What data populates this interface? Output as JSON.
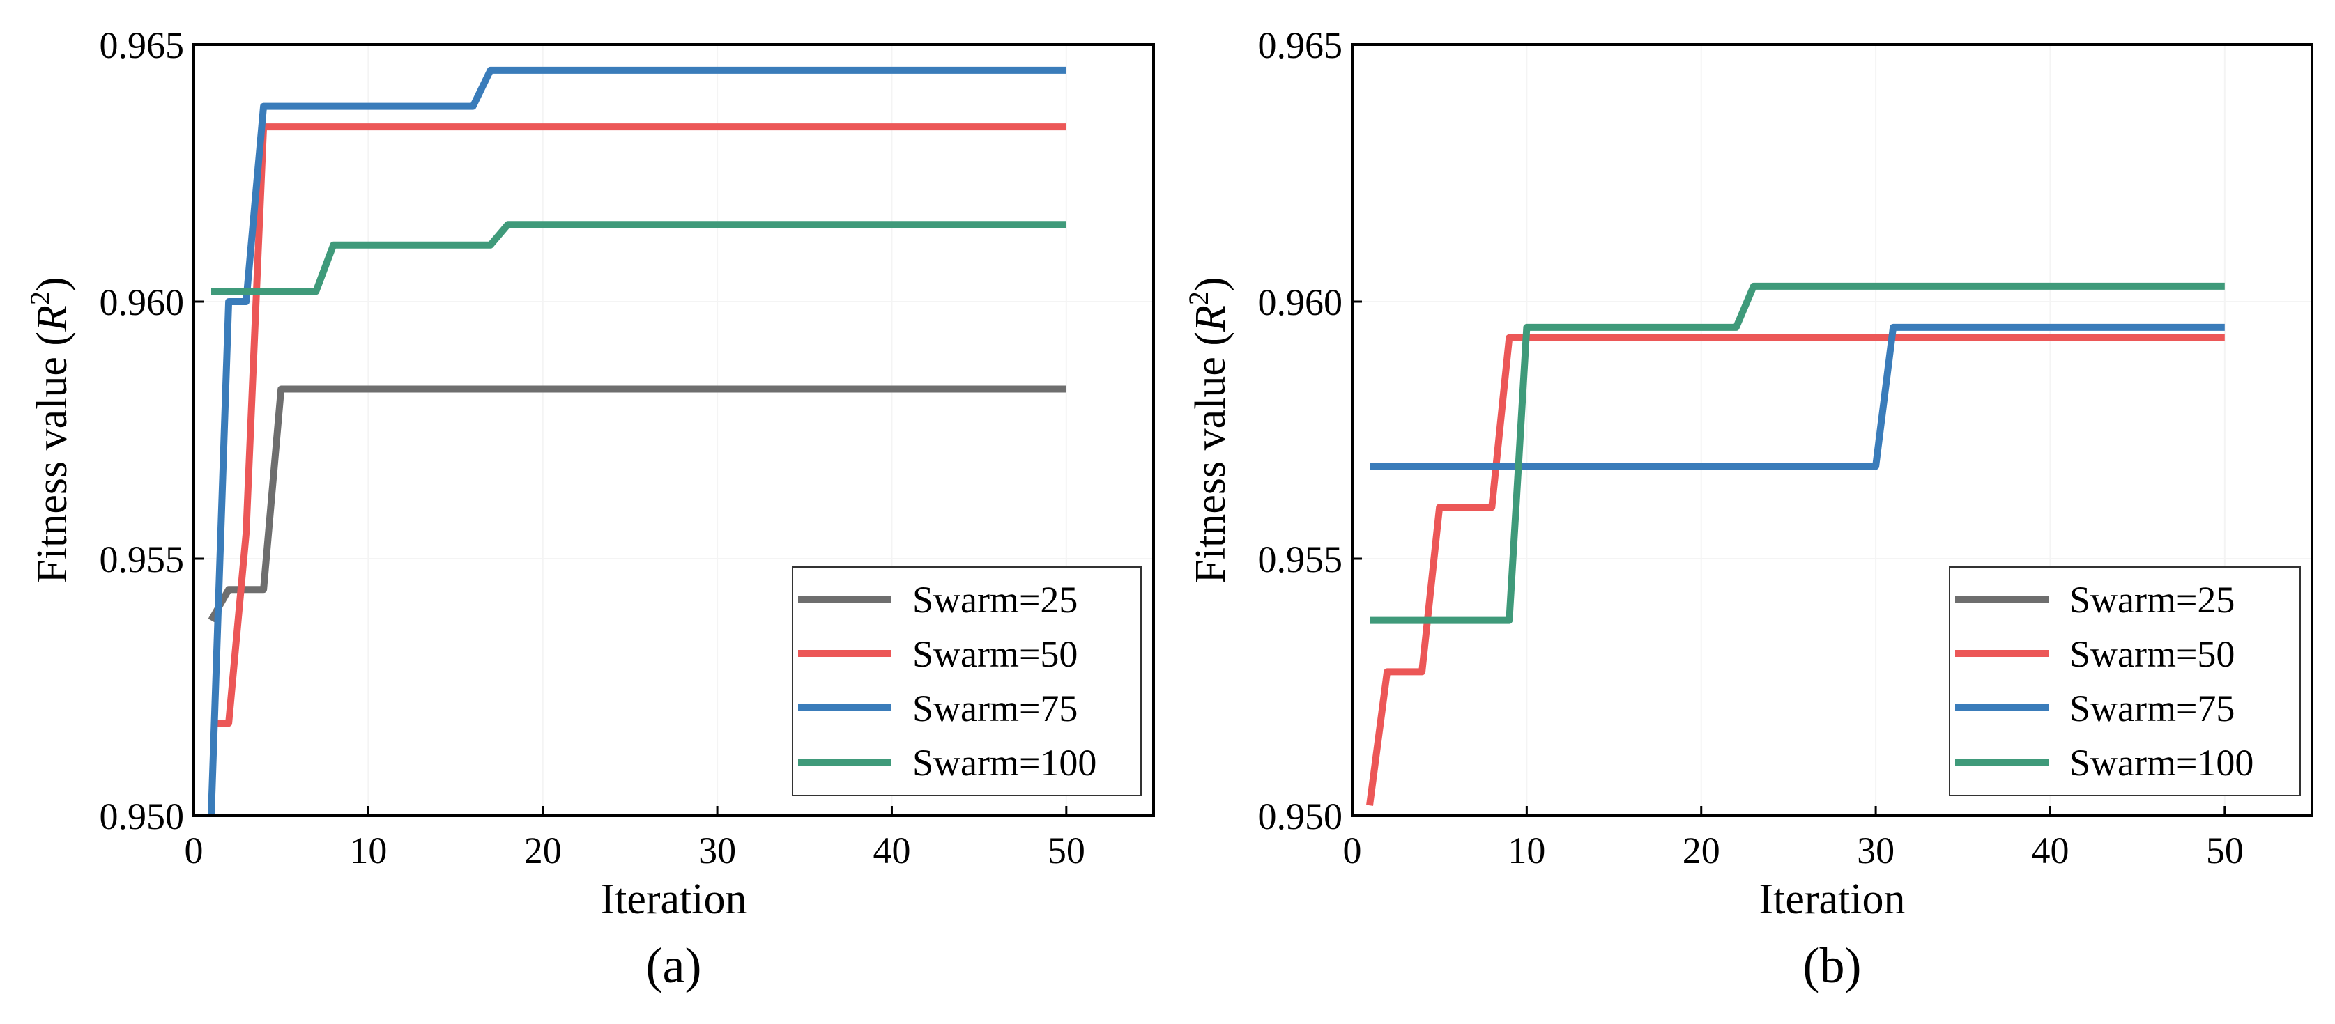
{
  "colors": {
    "Swarm=25": "#6e6e6e",
    "Swarm=50": "#ec5757",
    "Swarm=75": "#3a7cba",
    "Swarm=100": "#3f9a7a"
  },
  "chart_data": [
    {
      "type": "line",
      "panel_label": "(a)",
      "xlabel": "Iteration",
      "ylabel_prefix": "Fitness value (",
      "ylabel_var": "R",
      "ylabel_sup": "2",
      "ylabel_suffix": ")",
      "xlim": [
        0,
        55
      ],
      "ylim": [
        0.95,
        0.965
      ],
      "xticks": [
        0,
        10,
        20,
        30,
        40,
        50
      ],
      "yticks": [
        0.95,
        0.955,
        0.96,
        0.965
      ],
      "ytick_labels": [
        "0.950",
        "0.955",
        "0.960",
        "0.965"
      ],
      "legend_position": "bottom-right",
      "series": [
        {
          "name": "Swarm=25",
          "x": [
            1,
            2,
            3,
            4,
            5,
            50
          ],
          "y": [
            0.9538,
            0.9544,
            0.9544,
            0.9544,
            0.9583,
            0.9583
          ]
        },
        {
          "name": "Swarm=50",
          "x": [
            1,
            2,
            3,
            4,
            50
          ],
          "y": [
            0.9518,
            0.9518,
            0.9555,
            0.9634,
            0.9634
          ]
        },
        {
          "name": "Swarm=75",
          "x": [
            1,
            2,
            3,
            4,
            16,
            17,
            50
          ],
          "y": [
            0.95,
            0.96,
            0.96,
            0.9638,
            0.9638,
            0.9645,
            0.9645
          ]
        },
        {
          "name": "Swarm=100",
          "x": [
            1,
            7,
            8,
            17,
            18,
            50
          ],
          "y": [
            0.9602,
            0.9602,
            0.9611,
            0.9611,
            0.9615,
            0.9615
          ]
        }
      ]
    },
    {
      "type": "line",
      "panel_label": "(b)",
      "xlabel": "Iteration",
      "ylabel_prefix": "Fitness value (",
      "ylabel_var": "R",
      "ylabel_sup": "2",
      "ylabel_suffix": ")",
      "xlim": [
        0,
        55
      ],
      "ylim": [
        0.95,
        0.965
      ],
      "xticks": [
        0,
        10,
        20,
        30,
        40,
        50
      ],
      "yticks": [
        0.95,
        0.955,
        0.96,
        0.965
      ],
      "ytick_labels": [
        "0.950",
        "0.955",
        "0.960",
        "0.965"
      ],
      "legend_position": "bottom-right",
      "series": [
        {
          "name": "Swarm=25",
          "x": [],
          "y": []
        },
        {
          "name": "Swarm=50",
          "x": [
            1,
            2,
            4,
            5,
            8,
            9,
            50
          ],
          "y": [
            0.9502,
            0.9528,
            0.9528,
            0.956,
            0.956,
            0.9593,
            0.9593
          ]
        },
        {
          "name": "Swarm=75",
          "x": [
            1,
            30,
            31,
            50
          ],
          "y": [
            0.9568,
            0.9568,
            0.9595,
            0.9595
          ]
        },
        {
          "name": "Swarm=100",
          "x": [
            1,
            9,
            10,
            22,
            23,
            50
          ],
          "y": [
            0.9538,
            0.9538,
            0.9595,
            0.9595,
            0.9603,
            0.9603
          ]
        }
      ]
    }
  ]
}
